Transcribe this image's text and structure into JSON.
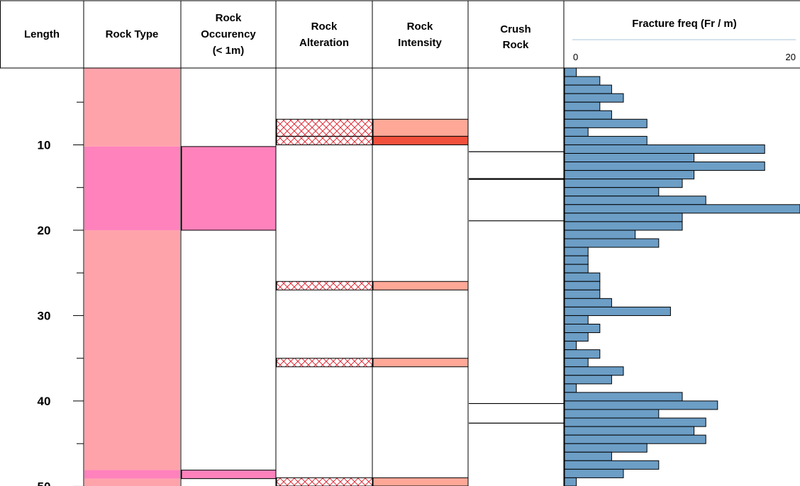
{
  "header": {
    "length": "Length",
    "rock_type": "Rock Type",
    "occurency": [
      "Rock",
      "Occurency",
      "(< 1m)"
    ],
    "alteration": [
      "Rock",
      "Alteration"
    ],
    "intensity": [
      "Rock",
      "Intensity"
    ],
    "crush": [
      "Crush",
      "Rock"
    ],
    "fracture_title": "Fracture freq (Fr / m)",
    "fracture_min": "0",
    "fracture_max": "20"
  },
  "colors": {
    "rock_type_base": "#FFA3AB",
    "rock_type_alt": "#FF82BC",
    "intensity_light": "#FFA898",
    "intensity_dark": "#F0503C",
    "hatch": "#E0303A",
    "bar_fill": "#6C9EC6"
  },
  "chart_data": {
    "type": "bar",
    "depth_range": [
      1,
      50
    ],
    "major_ticks": [
      {
        "depth": 10,
        "label": "10"
      },
      {
        "depth": 20,
        "label": "20"
      },
      {
        "depth": 30,
        "label": "30"
      },
      {
        "depth": 40,
        "label": "40"
      },
      {
        "depth": 50,
        "label": "50"
      }
    ],
    "minor_ticks": [
      5,
      15,
      25,
      35,
      45
    ],
    "rock_type": [
      {
        "from": 1,
        "to": 10.2,
        "color": "rock_type_base"
      },
      {
        "from": 10.2,
        "to": 20.0,
        "color": "rock_type_alt"
      },
      {
        "from": 20.0,
        "to": 48.1,
        "color": "rock_type_base"
      },
      {
        "from": 48.1,
        "to": 49.1,
        "color": "rock_type_alt"
      },
      {
        "from": 49.1,
        "to": 50.2,
        "color": "rock_type_base"
      }
    ],
    "rock_occurency": [
      {
        "from": 10.2,
        "to": 20.0
      },
      {
        "from": 48.1,
        "to": 49.1
      }
    ],
    "rock_alteration": [
      {
        "from": 7.0,
        "to": 9.0
      },
      {
        "from": 9.0,
        "to": 10.0
      },
      {
        "from": 26.0,
        "to": 27.0
      },
      {
        "from": 35.0,
        "to": 36.0
      },
      {
        "from": 49.0,
        "to": 50.2
      }
    ],
    "rock_intensity": [
      {
        "from": 7.0,
        "to": 9.0,
        "level": "light"
      },
      {
        "from": 9.0,
        "to": 10.0,
        "level": "dark"
      },
      {
        "from": 26.0,
        "to": 27.0,
        "level": "light"
      },
      {
        "from": 35.0,
        "to": 36.0,
        "level": "light"
      },
      {
        "from": 49.0,
        "to": 50.2,
        "level": "light"
      }
    ],
    "crush_rock": [
      {
        "depth": 10.8,
        "heavy": false
      },
      {
        "depth": 14.0,
        "heavy": true
      },
      {
        "depth": 18.9,
        "heavy": false
      },
      {
        "depth": 40.3,
        "heavy": false
      },
      {
        "depth": 42.6,
        "heavy": false
      }
    ],
    "fracture_freq": {
      "xlim": [
        0,
        20
      ],
      "depths": [
        1,
        2,
        3,
        4,
        5,
        6,
        7,
        8,
        9,
        10,
        11,
        12,
        13,
        14,
        15,
        16,
        17,
        18,
        19,
        20,
        21,
        22,
        23,
        24,
        25,
        26,
        27,
        28,
        29,
        30,
        31,
        32,
        33,
        34,
        35,
        36,
        37,
        38,
        39,
        40,
        41,
        42,
        43,
        44,
        45,
        46,
        47,
        48,
        49,
        50
      ],
      "values": [
        1,
        3,
        4,
        5,
        3,
        4,
        7,
        2,
        7,
        17,
        11,
        17,
        11,
        10,
        8,
        12,
        20,
        10,
        10,
        6,
        8,
        2,
        2,
        2,
        3,
        3,
        3,
        4,
        9,
        2,
        3,
        2,
        1,
        3,
        2,
        5,
        4,
        1,
        10,
        13,
        8,
        12,
        11,
        12,
        7,
        4,
        8,
        5,
        1,
        1
      ]
    }
  }
}
